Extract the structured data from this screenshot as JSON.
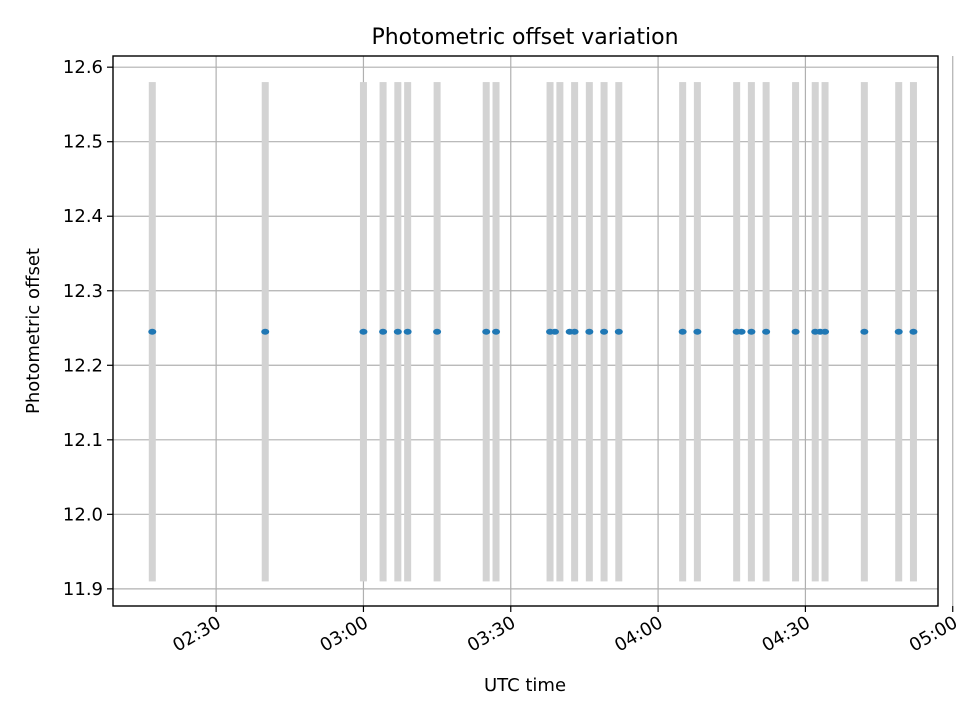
{
  "chart_data": {
    "type": "scatter",
    "title": "Photometric offset variation",
    "xlabel": "UTC time",
    "ylabel": "Photometric offset",
    "grid": true,
    "x_unit": "UTC HH:MM (minutes shown as HH:MM in data below)",
    "xlim": [
      "02:09",
      "04:57"
    ],
    "ylim": [
      11.877,
      12.615
    ],
    "x_ticks": [
      "02:30",
      "03:00",
      "03:30",
      "04:00",
      "04:30",
      "05:00"
    ],
    "y_ticks": [
      11.9,
      12.0,
      12.1,
      12.2,
      12.3,
      12.4,
      12.5,
      12.6
    ],
    "y_tick_labels": [
      "11.9",
      "12.0",
      "12.1",
      "12.2",
      "12.3",
      "12.4",
      "12.5",
      "12.6"
    ],
    "band_color": "#d3d3d3",
    "point_color": "#1f77b4",
    "band_range": [
      11.91,
      12.58
    ],
    "offset_value": 12.245,
    "points": [
      {
        "x": "02:17",
        "y": 12.245
      },
      {
        "x": "02:40",
        "y": 12.245
      },
      {
        "x": "03:00",
        "y": 12.245
      },
      {
        "x": "03:04",
        "y": 12.245
      },
      {
        "x": "03:07",
        "y": 12.245
      },
      {
        "x": "03:09",
        "y": 12.245
      },
      {
        "x": "03:15",
        "y": 12.245
      },
      {
        "x": "03:25",
        "y": 12.245
      },
      {
        "x": "03:27",
        "y": 12.245
      },
      {
        "x": "03:38",
        "y": 12.245
      },
      {
        "x": "03:39",
        "y": 12.245
      },
      {
        "x": "03:42",
        "y": 12.245
      },
      {
        "x": "03:43",
        "y": 12.245
      },
      {
        "x": "03:46",
        "y": 12.245
      },
      {
        "x": "03:49",
        "y": 12.245
      },
      {
        "x": "03:52",
        "y": 12.245
      },
      {
        "x": "04:05",
        "y": 12.245
      },
      {
        "x": "04:08",
        "y": 12.245
      },
      {
        "x": "04:16",
        "y": 12.245
      },
      {
        "x": "04:17",
        "y": 12.245
      },
      {
        "x": "04:19",
        "y": 12.245
      },
      {
        "x": "04:22",
        "y": 12.245
      },
      {
        "x": "04:28",
        "y": 12.245
      },
      {
        "x": "04:32",
        "y": 12.245
      },
      {
        "x": "04:33",
        "y": 12.245
      },
      {
        "x": "04:34",
        "y": 12.245
      },
      {
        "x": "04:42",
        "y": 12.245
      },
      {
        "x": "04:49",
        "y": 12.245
      },
      {
        "x": "04:52",
        "y": 12.245
      }
    ],
    "bands": [
      "02:17",
      "02:40",
      "03:00",
      "03:04",
      "03:07",
      "03:09",
      "03:15",
      "03:25",
      "03:27",
      "03:38",
      "03:40",
      "03:43",
      "03:46",
      "03:49",
      "03:52",
      "04:05",
      "04:08",
      "04:16",
      "04:19",
      "04:22",
      "04:28",
      "04:32",
      "04:34",
      "04:42",
      "04:49",
      "04:52"
    ]
  }
}
